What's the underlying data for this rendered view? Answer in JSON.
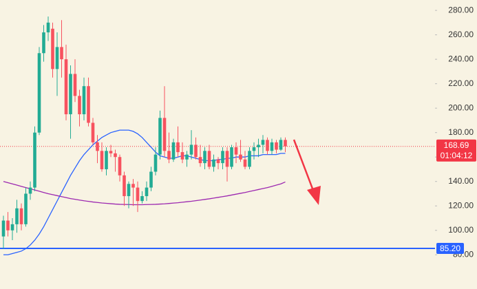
{
  "chart_data": {
    "type": "candlestick",
    "up_color": "#22ab94",
    "down_color": "#f7525f",
    "ylim": [
      52,
      288.5
    ],
    "yticks": [
      {
        "value": 80,
        "label": "80.00"
      },
      {
        "value": 100,
        "label": "100.00"
      },
      {
        "value": 120,
        "label": "120.00"
      },
      {
        "value": 140,
        "label": "140.00"
      },
      {
        "value": 160,
        "label": "160.00"
      },
      {
        "value": 180,
        "label": "180.00"
      },
      {
        "value": 200,
        "label": "200.00"
      },
      {
        "value": 220,
        "label": "220.00"
      },
      {
        "value": 240,
        "label": "240.00"
      },
      {
        "value": 260,
        "label": "260.00"
      },
      {
        "value": 280,
        "label": "280.00"
      }
    ],
    "ohlc": [
      [
        95,
        112,
        85,
        108
      ],
      [
        108,
        115,
        95,
        100
      ],
      [
        100,
        110,
        92,
        105
      ],
      [
        105,
        125,
        98,
        118
      ],
      [
        118,
        122,
        100,
        105
      ],
      [
        105,
        135,
        103,
        130
      ],
      [
        130,
        140,
        125,
        135
      ],
      [
        135,
        185,
        132,
        180
      ],
      [
        180,
        250,
        178,
        245
      ],
      [
        245,
        268,
        238,
        262
      ],
      [
        262,
        275,
        255,
        270
      ],
      [
        265,
        270,
        225,
        232
      ],
      [
        232,
        262,
        210,
        250
      ],
      [
        250,
        272,
        225,
        240
      ],
      [
        240,
        252,
        190,
        195
      ],
      [
        195,
        235,
        175,
        228
      ],
      [
        228,
        240,
        205,
        210
      ],
      [
        210,
        215,
        185,
        195
      ],
      [
        195,
        225,
        190,
        218
      ],
      [
        218,
        225,
        185,
        188
      ],
      [
        188,
        192,
        170,
        172
      ],
      [
        172,
        178,
        155,
        165
      ],
      [
        165,
        172,
        148,
        150
      ],
      [
        150,
        168,
        145,
        165
      ],
      [
        165,
        170,
        160,
        163
      ],
      [
        163,
        166,
        148,
        160
      ],
      [
        160,
        162,
        140,
        145
      ],
      [
        145,
        148,
        120,
        128
      ],
      [
        128,
        140,
        118,
        138
      ],
      [
        138,
        142,
        120,
        135
      ],
      [
        135,
        140,
        115,
        124
      ],
      [
        124,
        132,
        122,
        128
      ],
      [
        128,
        140,
        124,
        135
      ],
      [
        135,
        152,
        132,
        148
      ],
      [
        148,
        168,
        145,
        162
      ],
      [
        162,
        198,
        158,
        192
      ],
      [
        192,
        218,
        160,
        165
      ],
      [
        165,
        180,
        155,
        158
      ],
      [
        158,
        175,
        156,
        172
      ],
      [
        172,
        185,
        160,
        164
      ],
      [
        164,
        172,
        155,
        158
      ],
      [
        158,
        165,
        152,
        162
      ],
      [
        162,
        182,
        158,
        170
      ],
      [
        170,
        176,
        158,
        160
      ],
      [
        160,
        170,
        152,
        155
      ],
      [
        155,
        168,
        150,
        165
      ],
      [
        165,
        170,
        150,
        152
      ],
      [
        152,
        162,
        148,
        158
      ],
      [
        158,
        160,
        150,
        155
      ],
      [
        155,
        168,
        150,
        165
      ],
      [
        165,
        168,
        140,
        152
      ],
      [
        152,
        170,
        150,
        168
      ],
      [
        168,
        172,
        155,
        162
      ],
      [
        162,
        174,
        156,
        158
      ],
      [
        158,
        165,
        150,
        152
      ],
      [
        152,
        168,
        150,
        165
      ],
      [
        165,
        172,
        158,
        168
      ],
      [
        168,
        175,
        160,
        170
      ],
      [
        170,
        178,
        163,
        174
      ],
      [
        174,
        176,
        162,
        165
      ],
      [
        165,
        175,
        162,
        172
      ],
      [
        172,
        174,
        163,
        166
      ],
      [
        166,
        176,
        165,
        174
      ],
      [
        174,
        176,
        164,
        168.69
      ]
    ],
    "moving_averages": [
      {
        "color": "#2962ff",
        "values": [
          80,
          80,
          81,
          82,
          83,
          85,
          88,
          92,
          97,
          103,
          110,
          117,
          124,
          131,
          138,
          145,
          151,
          157,
          162,
          166,
          170,
          173,
          176,
          178,
          180,
          181,
          182,
          182,
          182,
          181,
          179,
          176,
          172,
          168,
          164,
          161,
          160,
          159,
          159,
          160,
          161,
          161,
          160,
          159,
          158,
          157,
          157,
          157,
          158,
          158,
          159,
          159,
          160,
          160,
          160,
          161,
          161,
          161,
          162,
          162,
          162,
          162,
          163,
          163
        ]
      },
      {
        "color": "#9c27b0",
        "values": [
          140,
          139,
          138,
          137,
          136,
          135,
          134,
          133,
          132,
          131,
          130,
          129.2,
          128.4,
          127.6,
          126.8,
          126,
          125.4,
          124.8,
          124.2,
          123.7,
          123.2,
          122.8,
          122.4,
          122.1,
          121.8,
          121.5,
          121.3,
          121.2,
          121.1,
          121,
          121,
          121,
          121.1,
          121.2,
          121.3,
          121.5,
          121.7,
          122,
          122.3,
          122.6,
          123,
          123.4,
          123.8,
          124.3,
          124.8,
          125.3,
          125.8,
          126.4,
          127,
          127.6,
          128.2,
          128.9,
          129.6,
          130.3,
          131,
          131.8,
          132.6,
          133.4,
          134.2,
          135,
          136,
          137,
          138,
          139.6
        ]
      }
    ],
    "last_price": {
      "value": 168.69,
      "label": "168.69",
      "countdown": "01:04:12",
      "color": "#f23645"
    },
    "hline": {
      "value": 85.2,
      "label": "85.20",
      "color": "#2962ff"
    }
  }
}
